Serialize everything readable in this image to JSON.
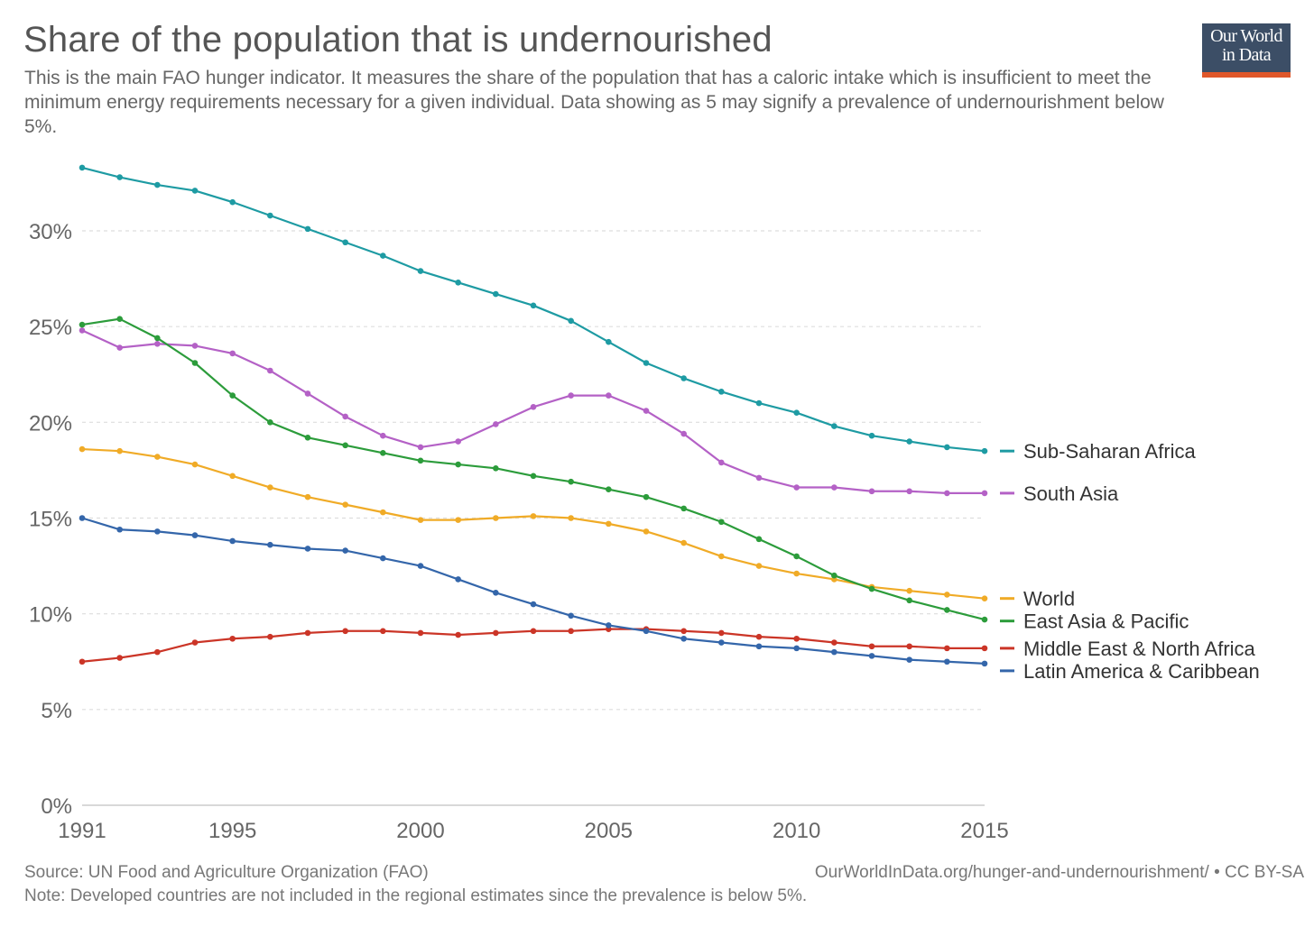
{
  "header": {
    "title": "Share of the population that is undernourished",
    "subtitle": "This is the main FAO hunger indicator. It measures the share of the population that has a caloric intake which is insufficient to meet the minimum energy requirements necessary for a given individual. Data showing as 5 may signify a prevalence of undernourishment below 5%.",
    "logo_line1": "Our World",
    "logo_line2": "in Data"
  },
  "footer": {
    "source": "Source: UN Food and Agriculture Organization (FAO)",
    "note": "Note: Developed countries are not included in the regional estimates since the prevalence is below 5%.",
    "url": "OurWorldInData.org/hunger-and-undernourishment/ • CC BY-SA"
  },
  "colors": {
    "logo_bg": "#3c4e66",
    "logo_accent": "#e0572a",
    "grid": "#dddddd",
    "axis": "#cccccc",
    "tick_text": "#666666"
  },
  "chart_data": {
    "type": "line",
    "xlim": [
      1991,
      2015
    ],
    "ylim": [
      0,
      33
    ],
    "grid": "horizontal dashed",
    "legend": "right, end-of-line labels",
    "x_ticks": [
      "1991",
      "1995",
      "2000",
      "2005",
      "2010",
      "2015"
    ],
    "y_ticks": [
      "0%",
      "5%",
      "10%",
      "15%",
      "20%",
      "25%",
      "30%"
    ],
    "x": [
      1991,
      1992,
      1993,
      1994,
      1995,
      1996,
      1997,
      1998,
      1999,
      2000,
      2001,
      2002,
      2003,
      2004,
      2005,
      2006,
      2007,
      2008,
      2009,
      2010,
      2011,
      2012,
      2013,
      2014,
      2015
    ],
    "series": [
      {
        "name": "Sub-Saharan Africa",
        "color": "#1e9ba3",
        "values": [
          33.3,
          32.8,
          32.4,
          32.1,
          31.5,
          30.8,
          30.1,
          29.4,
          28.7,
          27.9,
          27.3,
          26.7,
          26.1,
          25.3,
          24.2,
          23.1,
          22.3,
          21.6,
          21.0,
          20.5,
          19.8,
          19.3,
          19.0,
          18.7,
          18.5
        ]
      },
      {
        "name": "South Asia",
        "color": "#b461c6",
        "values": [
          24.8,
          23.9,
          24.1,
          24.0,
          23.6,
          22.7,
          21.5,
          20.3,
          19.3,
          18.7,
          19.0,
          19.9,
          20.8,
          21.4,
          21.4,
          20.6,
          19.4,
          17.9,
          17.1,
          16.6,
          16.6,
          16.4,
          16.4,
          16.3,
          16.3
        ]
      },
      {
        "name": "World",
        "color": "#f0ab27",
        "values": [
          18.6,
          18.5,
          18.2,
          17.8,
          17.2,
          16.6,
          16.1,
          15.7,
          15.3,
          14.9,
          14.9,
          15.0,
          15.1,
          15.0,
          14.7,
          14.3,
          13.7,
          13.0,
          12.5,
          12.1,
          11.8,
          11.4,
          11.2,
          11.0,
          10.8
        ]
      },
      {
        "name": "East Asia & Pacific",
        "color": "#2c9c3b",
        "values": [
          25.1,
          25.4,
          24.4,
          23.1,
          21.4,
          20.0,
          19.2,
          18.8,
          18.4,
          18.0,
          17.8,
          17.6,
          17.2,
          16.9,
          16.5,
          16.1,
          15.5,
          14.8,
          13.9,
          13.0,
          12.0,
          11.3,
          10.7,
          10.2,
          9.7
        ]
      },
      {
        "name": "Middle East & North Africa",
        "color": "#cb3527",
        "values": [
          7.5,
          7.7,
          8.0,
          8.5,
          8.7,
          8.8,
          9.0,
          9.1,
          9.1,
          9.0,
          8.9,
          9.0,
          9.1,
          9.1,
          9.2,
          9.2,
          9.1,
          9.0,
          8.8,
          8.7,
          8.5,
          8.3,
          8.3,
          8.2,
          8.2
        ]
      },
      {
        "name": "Latin America & Caribbean",
        "color": "#3466aa",
        "values": [
          15.0,
          14.4,
          14.3,
          14.1,
          13.8,
          13.6,
          13.4,
          13.3,
          12.9,
          12.5,
          11.8,
          11.1,
          10.5,
          9.9,
          9.4,
          9.1,
          8.7,
          8.5,
          8.3,
          8.2,
          8.0,
          7.8,
          7.6,
          7.5,
          7.4
        ]
      }
    ]
  }
}
